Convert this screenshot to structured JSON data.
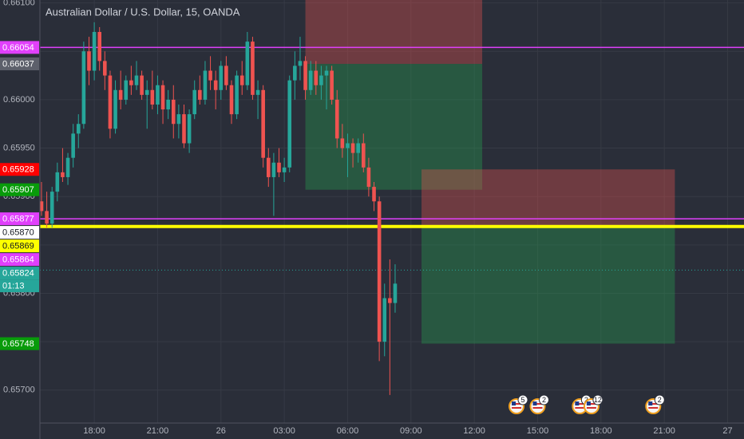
{
  "chart_data": {
    "type": "candlestick",
    "title": "Australian Dollar / U.S. Dollar, 15, OANDA",
    "up_color": "#26a69a",
    "down_color": "#ef5350",
    "open": [
      0.65895,
      0.65885,
      0.65872,
      0.65905,
      0.65925,
      0.6592,
      0.6594,
      0.65965,
      0.65975,
      0.6605,
      0.6603,
      0.6607,
      0.6604,
      0.66025,
      0.6597,
      0.6601,
      0.66,
      0.6602,
      0.66015,
      0.66025,
      0.66005,
      0.6601,
      0.65995,
      0.66015,
      0.6599,
      0.66,
      0.65975,
      0.65985,
      0.65955,
      0.65985,
      0.6601,
      0.66,
      0.6603,
      0.6602,
      0.6601,
      0.66035,
      0.66015,
      0.65985,
      0.66025,
      0.66015,
      0.6606,
      0.66005,
      0.6601,
      0.6594,
      0.6592,
      0.65935,
      0.65925,
      0.6593,
      0.6602,
      0.66035,
      0.6604,
      0.6601,
      0.6603,
      0.66015,
      0.66025,
      0.6603,
      0.66,
      0.6596,
      0.6595,
      0.65955,
      0.65945,
      0.65955,
      0.6593,
      0.6591,
      0.65895,
      0.6575,
      0.65795,
      0.6579
    ],
    "high": [
      0.65915,
      0.65905,
      0.6591,
      0.65935,
      0.6595,
      0.65945,
      0.65975,
      0.65985,
      0.6606,
      0.66065,
      0.6608,
      0.66075,
      0.6605,
      0.6603,
      0.6602,
      0.6603,
      0.66025,
      0.66035,
      0.6604,
      0.6603,
      0.6602,
      0.6603,
      0.66025,
      0.6602,
      0.6601,
      0.66015,
      0.65995,
      0.65995,
      0.6599,
      0.6602,
      0.66025,
      0.6604,
      0.66045,
      0.6603,
      0.6604,
      0.66045,
      0.6602,
      0.6603,
      0.6604,
      0.6607,
      0.66065,
      0.6602,
      0.66015,
      0.6595,
      0.65945,
      0.6595,
      0.6594,
      0.66025,
      0.6605,
      0.66065,
      0.66045,
      0.6604,
      0.6604,
      0.66035,
      0.66035,
      0.66035,
      0.6601,
      0.65975,
      0.65965,
      0.6596,
      0.6596,
      0.65965,
      0.6594,
      0.65915,
      0.659,
      0.6581,
      0.65835,
      0.6583
    ],
    "low": [
      0.6588,
      0.65868,
      0.65868,
      0.65895,
      0.65915,
      0.65912,
      0.6593,
      0.6595,
      0.6597,
      0.66015,
      0.6602,
      0.6603,
      0.6601,
      0.6596,
      0.65965,
      0.6599,
      0.65995,
      0.66005,
      0.6601,
      0.66,
      0.6597,
      0.6599,
      0.65985,
      0.65975,
      0.6598,
      0.6596,
      0.6596,
      0.6595,
      0.65945,
      0.6598,
      0.65995,
      0.65995,
      0.6601,
      0.6599,
      0.66,
      0.6601,
      0.65975,
      0.6598,
      0.66005,
      0.6601,
      0.66,
      0.6598,
      0.6593,
      0.6591,
      0.6588,
      0.6592,
      0.65915,
      0.65925,
      0.66,
      0.6602,
      0.66,
      0.66005,
      0.66005,
      0.66,
      0.6599,
      0.65995,
      0.6595,
      0.6594,
      0.6592,
      0.6593,
      0.65935,
      0.65925,
      0.659,
      0.65885,
      0.6573,
      0.65735,
      0.65695,
      0.6578
    ],
    "close": [
      0.65885,
      0.65872,
      0.65905,
      0.65925,
      0.6592,
      0.6594,
      0.65965,
      0.65975,
      0.6605,
      0.6603,
      0.6607,
      0.6604,
      0.66025,
      0.6597,
      0.6601,
      0.66,
      0.6602,
      0.66015,
      0.66025,
      0.66005,
      0.6601,
      0.65995,
      0.66015,
      0.6599,
      0.66,
      0.65975,
      0.65985,
      0.65955,
      0.65985,
      0.6601,
      0.66,
      0.6603,
      0.6602,
      0.6601,
      0.66035,
      0.66015,
      0.65985,
      0.66025,
      0.66015,
      0.6606,
      0.66005,
      0.6601,
      0.6594,
      0.6592,
      0.65935,
      0.65925,
      0.6593,
      0.6602,
      0.66035,
      0.6604,
      0.6601,
      0.6603,
      0.66015,
      0.66025,
      0.6603,
      0.66,
      0.6596,
      0.6595,
      0.65955,
      0.65945,
      0.65955,
      0.6593,
      0.6591,
      0.65895,
      0.6575,
      0.65795,
      0.6579,
      0.6581
    ],
    "ylim": [
      0.65666,
      0.66103
    ],
    "yticks": [
      {
        "value": 0.661,
        "label": "0.66100"
      },
      {
        "value": 0.6605,
        "label": "0.66050"
      },
      {
        "value": 0.66,
        "label": "0.66000"
      },
      {
        "value": 0.6595,
        "label": "0.65950"
      },
      {
        "value": 0.659,
        "label": "0.65900"
      },
      {
        "value": 0.6585,
        "label": "0.65850"
      },
      {
        "value": 0.658,
        "label": "0.65800"
      },
      {
        "value": 0.6575,
        "label": "0.65750"
      },
      {
        "value": 0.657,
        "label": "0.65700"
      }
    ],
    "xlim": [
      -0.3,
      133.1
    ],
    "xticks": [
      {
        "value": 10,
        "label": "18:00"
      },
      {
        "value": 22,
        "label": "21:00"
      },
      {
        "value": 34,
        "label": "26"
      },
      {
        "value": 46,
        "label": "03:00"
      },
      {
        "value": 58,
        "label": "06:00"
      },
      {
        "value": 70,
        "label": "09:00"
      },
      {
        "value": 82,
        "label": "12:00"
      },
      {
        "value": 94,
        "label": "15:00"
      },
      {
        "value": 106,
        "label": "18:00"
      },
      {
        "value": 118,
        "label": "21:00"
      },
      {
        "value": 130,
        "label": "27"
      }
    ],
    "grid": true,
    "positions": [
      {
        "start": 50,
        "end": 83.5,
        "stop": 0.6611,
        "entry": 0.66037,
        "target": 0.65907
      },
      {
        "start": 72,
        "end": 120,
        "stop": 0.65928,
        "entry": 0.6587,
        "target": 0.65748
      }
    ],
    "price_labels": [
      {
        "value": 0.66054,
        "label": "0.66054",
        "color": "#e040fb",
        "text_color": "#ffffff",
        "line": "solid"
      },
      {
        "value": 0.66037,
        "label": "0.66037",
        "color": "#5d606b",
        "text_color": "#ffffff"
      },
      {
        "value": 0.65928,
        "label": "0.65928",
        "color": "#ff0000",
        "text_color": "#ffffff"
      },
      {
        "value": 0.65907,
        "label": "0.65907",
        "color": "#089b0a",
        "text_color": "#ffffff"
      },
      {
        "value": 0.65877,
        "label": "0.65877",
        "color": "#e040fb",
        "text_color": "#ffffff",
        "line": "solid"
      },
      {
        "value": 0.6587,
        "label": "0.65870",
        "color": "#ffffff",
        "text_color": "#131722"
      },
      {
        "value": 0.65869,
        "label": "0.65869",
        "color": "#ffff00",
        "text_color": "#131722",
        "line": "thick"
      },
      {
        "value": 0.65864,
        "label": "0.65864",
        "color": "#e040fb",
        "text_color": "#ffffff"
      },
      {
        "value": 0.65824,
        "label": "0.65824",
        "color": "#26a69a",
        "text_color": "#ffffff",
        "line": "dotted",
        "countdown": "01:13"
      },
      {
        "value": 0.65748,
        "label": "0.65748",
        "color": "#089b0a",
        "text_color": "#ffffff"
      }
    ],
    "events": [
      {
        "x": 90,
        "label": "5"
      },
      {
        "x": 94,
        "label": "2"
      },
      {
        "x": 102,
        "label": "2"
      },
      {
        "x": 104.2,
        "label": "12"
      },
      {
        "x": 115.9,
        "label": "2"
      }
    ]
  }
}
